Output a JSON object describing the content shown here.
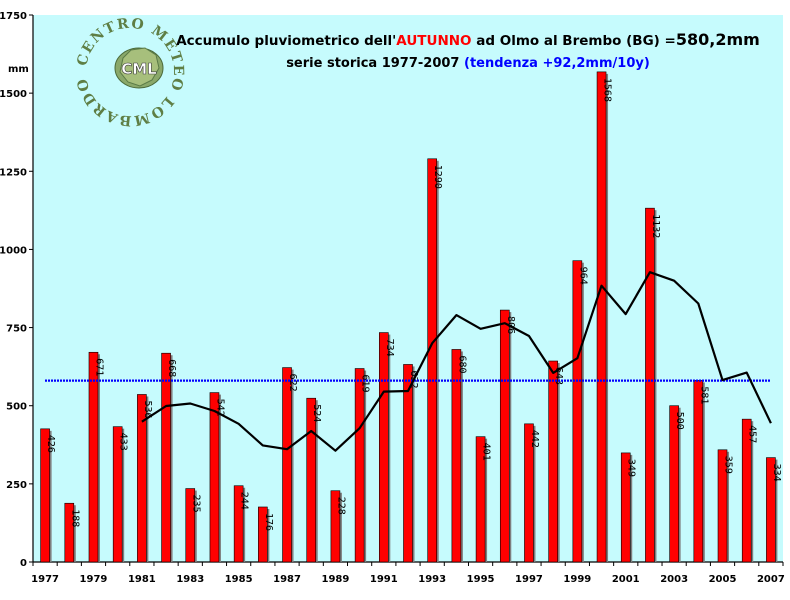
{
  "chart_data": {
    "type": "bar",
    "title": {
      "prefix": "Accumulo pluviometrico dell'",
      "season": "AUTUNNO",
      "middle": " ad Olmo al Brembo (BG) =",
      "mean_value": "580,2mm"
    },
    "subtitle": {
      "text": "serie storica 1977-2007 ",
      "trend": "(tendenza +92,2mm/10y)"
    },
    "ylabel": "mm",
    "ylim": [
      0,
      1750
    ],
    "yticks": [
      0,
      250,
      500,
      750,
      1000,
      1250,
      1500,
      1750
    ],
    "x": [
      1977,
      1978,
      1979,
      1980,
      1981,
      1982,
      1983,
      1984,
      1985,
      1986,
      1987,
      1988,
      1989,
      1990,
      1991,
      1992,
      1993,
      1994,
      1995,
      1996,
      1997,
      1998,
      1999,
      2000,
      2001,
      2002,
      2003,
      2004,
      2005,
      2006,
      2007
    ],
    "xtick_labels": [
      "1977",
      "1979",
      "1981",
      "1983",
      "1985",
      "1987",
      "1989",
      "1991",
      "1993",
      "1995",
      "1997",
      "1999",
      "2001",
      "2003",
      "2005",
      "2007"
    ],
    "values": [
      426,
      188,
      671,
      433,
      536,
      668,
      235,
      542,
      244,
      176,
      622,
      524,
      228,
      619,
      734,
      632,
      1290,
      680,
      401,
      806,
      442,
      643,
      964,
      1568,
      349,
      1132,
      500,
      581,
      359,
      457,
      334
    ],
    "value_labels": [
      "426",
      "188",
      "671",
      "433",
      "536",
      "668",
      "235",
      "542",
      "244",
      "176",
      "622",
      "524",
      "228",
      "619",
      "734",
      "632",
      "1290",
      "680",
      "401",
      "806",
      "442",
      "643",
      "964",
      "1568",
      "349",
      "1132",
      "500",
      "581",
      "359",
      "457",
      "334"
    ],
    "series": [
      {
        "x": [
          1981,
          1982,
          1983,
          1984,
          1985,
          1986,
          1987,
          1988,
          1989,
          1990,
          1991,
          1992,
          1993,
          1994,
          1995,
          1996,
          1997,
          1998,
          1999,
          2000,
          2001,
          2002,
          2003,
          2004,
          2005,
          2006,
          2007
        ],
        "values": [
          449,
          499,
          507,
          483,
          442,
          373,
          361,
          419,
          356,
          428,
          545,
          547,
          700,
          790,
          746,
          764,
          723,
          605,
          652,
          884,
          793,
          927,
          900,
          827,
          582,
          606,
          444
        ]
      },
      {
        "x": [
          1977,
          2007
        ],
        "values": [
          580.2,
          580.2
        ]
      }
    ],
    "grid": false,
    "colors": {
      "plot_background": "#c6fbfd",
      "bars": "#ff0000",
      "bar_shadow": "#7f7f7f",
      "moving_average": "#000000",
      "mean_line": "#0000ff",
      "season_text": "#ff0000",
      "trend_text": "#0000ff"
    },
    "logo": {
      "center_text": "CML",
      "ring_text": "CENTRO METEO LOMBARDO"
    }
  }
}
